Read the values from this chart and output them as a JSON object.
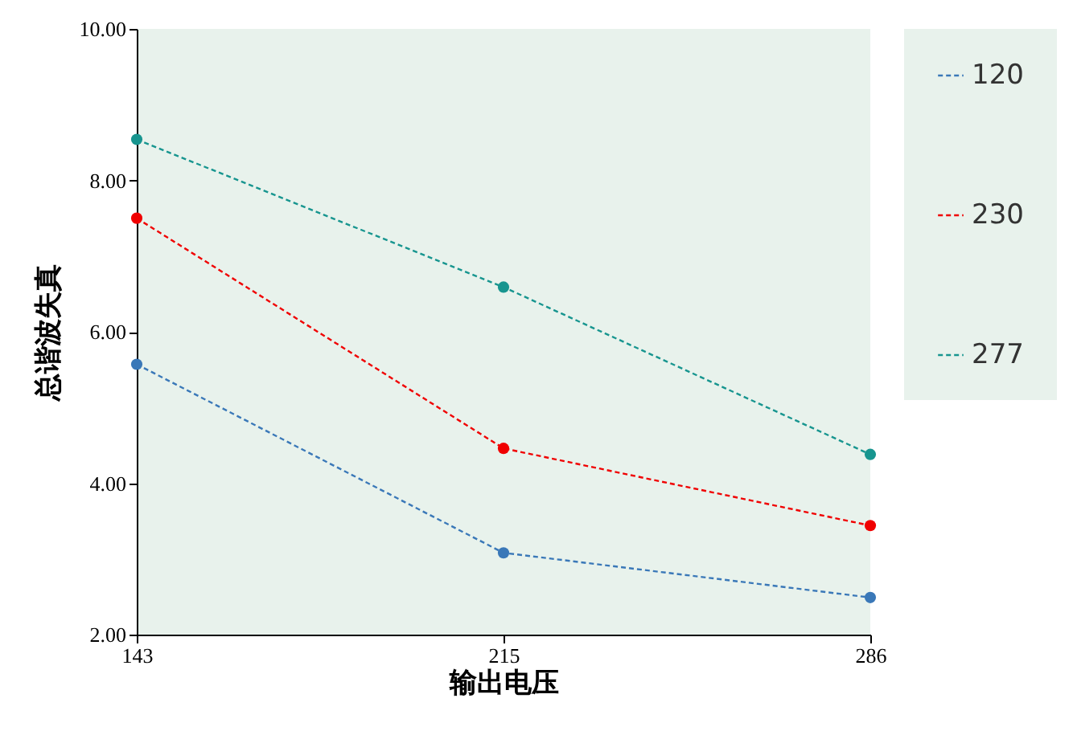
{
  "chart_data": {
    "type": "line",
    "xlabel": "输出电压",
    "ylabel": "总谐波失真",
    "categories": [
      "143",
      "215",
      "286"
    ],
    "series": [
      {
        "name": "120",
        "color": "#3a78b8",
        "values": [
          5.57,
          3.08,
          2.49
        ]
      },
      {
        "name": "230",
        "color": "#f00000",
        "values": [
          7.5,
          4.46,
          3.44
        ]
      },
      {
        "name": "277",
        "color": "#17958f",
        "values": [
          8.54,
          6.59,
          4.38
        ]
      }
    ],
    "ylim": [
      2,
      10
    ],
    "yticks": [
      {
        "value": 2,
        "label": "2.00"
      },
      {
        "value": 4,
        "label": "4.00"
      },
      {
        "value": 6,
        "label": "6.00"
      },
      {
        "value": 8,
        "label": "8.00"
      },
      {
        "value": 10,
        "label": "10.00"
      }
    ],
    "grid": false,
    "legend": "right",
    "marker": "circle",
    "line_style": "dashed"
  }
}
